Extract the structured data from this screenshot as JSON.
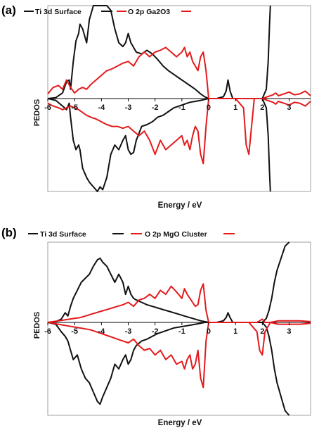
{
  "chart_data": [
    {
      "type": "line",
      "panel_label": "(a)",
      "xlabel": "Energy / eV",
      "ylabel": "PEDOS",
      "xlim": [
        -6,
        3.8
      ],
      "x_ticks": [
        -6,
        -5,
        -4,
        -3,
        -2,
        -1,
        0,
        1,
        2,
        3
      ],
      "x_tick_labels": [
        "-6",
        "-5",
        "-4",
        "-3",
        "-2",
        "-1",
        "0",
        "1",
        "2",
        "3"
      ],
      "ylim": [
        -1,
        1
      ],
      "grid": false,
      "legend_position": "top-left",
      "series": [
        {
          "name": "Ti 3d Surface",
          "color": "#111111",
          "x": [
            -6,
            -5.7,
            -5.45,
            -5.3,
            -5.2,
            -5.15,
            -5.05,
            -4.95,
            -4.85,
            -4.8,
            -4.7,
            -4.55,
            -4.45,
            -4.3,
            -4.15,
            -4.05,
            -3.95,
            -3.8,
            -3.65,
            -3.5,
            -3.35,
            -3.2,
            -3.1,
            -3.0,
            -2.9,
            -2.8,
            -2.7,
            -2.5,
            -2.3,
            -2.1,
            -1.9,
            -1.7,
            -1.5,
            -1.3,
            -1.1,
            -0.9,
            -0.7,
            -0.5,
            -0.3,
            -0.15,
            0,
            0.3,
            0.55,
            0.65,
            0.72,
            0.8,
            0.9,
            1.2,
            2.0,
            2.15,
            2.22,
            2.27,
            2.3
          ],
          "y": [
            0,
            0.01,
            0.06,
            0.18,
            0.2,
            0.1,
            0.4,
            0.62,
            0.7,
            0.8,
            0.75,
            0.6,
            0.85,
            1.0,
            1.0,
            1.0,
            1.0,
            1.0,
            0.95,
            0.75,
            0.6,
            0.56,
            0.6,
            0.7,
            0.6,
            0.55,
            0.5,
            0.48,
            0.52,
            0.48,
            0.42,
            0.35,
            0.3,
            0.26,
            0.22,
            0.18,
            0.14,
            0.1,
            0.05,
            0.02,
            0,
            0,
            0.02,
            0.08,
            0.2,
            0.08,
            0,
            0,
            0,
            0.1,
            0.4,
            0.8,
            1.0
          ],
          "y_neg": [
            0,
            -0.02,
            -0.08,
            -0.12,
            -0.05,
            -0.2,
            -0.45,
            -0.55,
            -0.5,
            -0.55,
            -0.75,
            -0.85,
            -0.9,
            -0.95,
            -1.0,
            -0.95,
            -0.98,
            -0.85,
            -0.6,
            -0.5,
            -0.55,
            -0.45,
            -0.4,
            -0.55,
            -0.6,
            -0.58,
            -0.45,
            -0.3,
            -0.28,
            -0.25,
            -0.2,
            -0.18,
            -0.14,
            -0.1,
            -0.08,
            -0.06,
            -0.04,
            -0.03,
            -0.02,
            -0.01,
            0,
            0,
            0,
            0,
            0,
            0,
            0,
            0,
            0,
            -0.1,
            -0.4,
            -0.8,
            -1.0
          ]
        },
        {
          "name": "O 2p Ga2O3",
          "color": "#e41a1c",
          "x": [
            -6,
            -5.8,
            -5.6,
            -5.45,
            -5.3,
            -5.15,
            -5.0,
            -4.85,
            -4.7,
            -4.55,
            -4.4,
            -4.2,
            -4.0,
            -3.8,
            -3.6,
            -3.4,
            -3.2,
            -3.0,
            -2.8,
            -2.6,
            -2.4,
            -2.2,
            -2.0,
            -1.8,
            -1.6,
            -1.4,
            -1.2,
            -1.0,
            -0.9,
            -0.8,
            -0.7,
            -0.6,
            -0.5,
            -0.4,
            -0.3,
            -0.2,
            -0.1,
            0,
            0.5,
            1.0,
            1.3,
            1.4,
            1.5,
            1.6,
            1.7,
            2.0,
            2.4,
            2.5,
            2.6,
            2.8,
            3.0,
            3.2,
            3.4,
            3.6,
            3.8
          ],
          "y": [
            0.05,
            0.12,
            0.14,
            0.1,
            0.2,
            0.12,
            0.06,
            0.1,
            0.12,
            0.1,
            0.15,
            0.2,
            0.25,
            0.3,
            0.32,
            0.35,
            0.38,
            0.4,
            0.35,
            0.45,
            0.5,
            0.45,
            0.5,
            0.52,
            0.55,
            0.5,
            0.45,
            0.5,
            0.55,
            0.45,
            0.5,
            0.4,
            0.35,
            0.3,
            0.45,
            0.5,
            0.3,
            0,
            0,
            0,
            0,
            0,
            0,
            0,
            0,
            0,
            0.04,
            0.06,
            0.03,
            0.05,
            0.07,
            0.04,
            0.05,
            0.08,
            0.03
          ],
          "y_neg": [
            -0.05,
            -0.08,
            -0.1,
            -0.12,
            -0.1,
            -0.08,
            -0.1,
            -0.12,
            -0.15,
            -0.18,
            -0.2,
            -0.22,
            -0.25,
            -0.28,
            -0.3,
            -0.3,
            -0.32,
            -0.3,
            -0.35,
            -0.4,
            -0.35,
            -0.45,
            -0.6,
            -0.45,
            -0.55,
            -0.5,
            -0.45,
            -0.4,
            -0.5,
            -0.45,
            -0.55,
            -0.4,
            -0.3,
            -0.35,
            -0.6,
            -0.7,
            -0.3,
            0,
            0,
            0,
            -0.1,
            -0.5,
            -0.6,
            -0.3,
            0,
            0,
            -0.04,
            -0.06,
            -0.03,
            -0.05,
            -0.07,
            -0.04,
            -0.05,
            -0.08,
            -0.03
          ]
        }
      ]
    },
    {
      "type": "line",
      "panel_label": "(b)",
      "xlabel": "Energy / eV",
      "ylabel": "PEDOS",
      "xlim": [
        -6,
        3.8
      ],
      "x_ticks": [
        -6,
        -5,
        -4,
        -3,
        -2,
        -1,
        0,
        1,
        2,
        3
      ],
      "x_tick_labels": [
        "-6",
        "-5",
        "-4",
        "-3",
        "-2",
        "-1",
        "0",
        "1",
        "2",
        "3"
      ],
      "ylim": [
        -1,
        1
      ],
      "grid": false,
      "legend_position": "top-left",
      "series": [
        {
          "name": "Ti 3d Surface",
          "color": "#111111",
          "x": [
            -6,
            -5.7,
            -5.5,
            -5.35,
            -5.25,
            -5.15,
            -5.05,
            -4.9,
            -4.75,
            -4.6,
            -4.45,
            -4.3,
            -4.15,
            -4.05,
            -3.95,
            -3.8,
            -3.65,
            -3.5,
            -3.35,
            -3.2,
            -3.1,
            -3.0,
            -2.9,
            -2.8,
            -2.7,
            -2.5,
            -2.3,
            -2.1,
            -1.9,
            -1.7,
            -1.5,
            -1.3,
            -1.1,
            -0.9,
            -0.7,
            -0.5,
            -0.3,
            -0.15,
            0,
            0.3,
            0.55,
            0.65,
            0.72,
            0.8,
            0.9,
            1.2,
            2.0,
            2.15,
            2.25,
            2.35,
            2.45,
            2.55,
            2.7,
            2.85,
            3.0
          ],
          "y": [
            0,
            0.01,
            0.04,
            0.12,
            0.08,
            0.2,
            0.3,
            0.4,
            0.5,
            0.55,
            0.6,
            0.7,
            0.78,
            0.8,
            0.75,
            0.7,
            0.6,
            0.5,
            0.6,
            0.5,
            0.35,
            0.45,
            0.35,
            0.3,
            0.28,
            0.25,
            0.22,
            0.2,
            0.18,
            0.16,
            0.14,
            0.12,
            0.1,
            0.08,
            0.06,
            0.04,
            0.02,
            0.01,
            0,
            0,
            0.02,
            0.06,
            0.12,
            0.06,
            0,
            0,
            0,
            0.05,
            0.15,
            0.3,
            0.5,
            0.65,
            0.8,
            0.95,
            1.0
          ],
          "y_neg": [
            0,
            -0.02,
            -0.1,
            -0.15,
            -0.2,
            -0.3,
            -0.4,
            -0.35,
            -0.5,
            -0.6,
            -0.65,
            -0.75,
            -0.85,
            -0.88,
            -0.8,
            -0.7,
            -0.6,
            -0.45,
            -0.5,
            -0.4,
            -0.35,
            -0.45,
            -0.4,
            -0.3,
            -0.25,
            -0.2,
            -0.18,
            -0.15,
            -0.12,
            -0.1,
            -0.08,
            -0.06,
            -0.05,
            -0.04,
            -0.03,
            -0.02,
            -0.01,
            0,
            0,
            0,
            0,
            0,
            0,
            0,
            0,
            0,
            0,
            -0.05,
            -0.15,
            -0.3,
            -0.5,
            -0.65,
            -0.8,
            -0.95,
            -1.0
          ]
        },
        {
          "name": "O 2p MgO Cluster",
          "color": "#e41a1c",
          "x": [
            -6,
            -5.8,
            -5.6,
            -5.4,
            -5.2,
            -5.0,
            -4.8,
            -4.6,
            -4.4,
            -4.2,
            -4.0,
            -3.8,
            -3.6,
            -3.4,
            -3.2,
            -3.0,
            -2.8,
            -2.6,
            -2.4,
            -2.2,
            -2.0,
            -1.8,
            -1.6,
            -1.4,
            -1.2,
            -1.0,
            -0.9,
            -0.8,
            -0.7,
            -0.6,
            -0.5,
            -0.4,
            -0.3,
            -0.2,
            -0.1,
            0,
            0.5,
            1.5,
            1.8,
            1.9,
            2.0,
            2.1,
            2.3,
            2.6,
            3.0,
            3.4,
            3.8
          ],
          "y": [
            0,
            0.01,
            0.02,
            0.03,
            0.04,
            0.05,
            0.06,
            0.08,
            0.1,
            0.12,
            0.14,
            0.16,
            0.18,
            0.2,
            0.22,
            0.25,
            0.2,
            0.28,
            0.3,
            0.35,
            0.3,
            0.4,
            0.35,
            0.45,
            0.38,
            0.3,
            0.42,
            0.35,
            0.3,
            0.25,
            0.2,
            0.22,
            0.4,
            0.48,
            0.15,
            0,
            0,
            0,
            0,
            0.02,
            0.04,
            0,
            0,
            0.02,
            0.02,
            0.02,
            0.01
          ],
          "y_neg": [
            0,
            -0.01,
            -0.02,
            -0.03,
            -0.04,
            -0.05,
            -0.06,
            -0.07,
            -0.08,
            -0.1,
            -0.12,
            -0.14,
            -0.16,
            -0.18,
            -0.2,
            -0.22,
            -0.18,
            -0.25,
            -0.3,
            -0.28,
            -0.35,
            -0.3,
            -0.4,
            -0.35,
            -0.45,
            -0.42,
            -0.5,
            -0.4,
            -0.35,
            -0.5,
            -0.45,
            -0.3,
            -0.6,
            -0.7,
            -0.2,
            0,
            0,
            0,
            -0.1,
            -0.3,
            -0.35,
            -0.1,
            0,
            -0.02,
            -0.02,
            -0.02,
            -0.01
          ]
        }
      ]
    }
  ]
}
